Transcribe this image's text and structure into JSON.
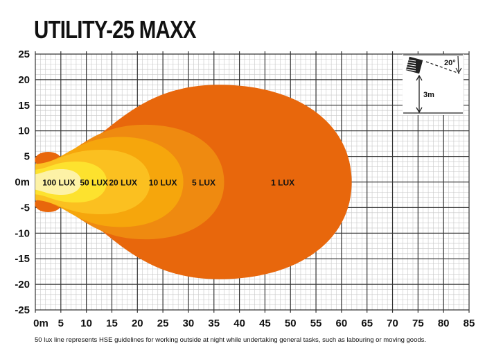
{
  "chart_data": {
    "type": "area",
    "title": "UTILITY-25 MAXX",
    "xlabel": "",
    "ylabel": "",
    "xlim": [
      0,
      85
    ],
    "ylim": [
      -25,
      25
    ],
    "grid": true,
    "x_ticks": [
      "0m",
      "5",
      "10",
      "15",
      "20",
      "25",
      "30",
      "35",
      "40",
      "45",
      "50",
      "55",
      "60",
      "65",
      "70",
      "75",
      "80",
      "85"
    ],
    "y_ticks": [
      "25",
      "20",
      "15",
      "10",
      "5",
      "0m",
      "-5",
      "-10",
      "-15",
      "-20",
      "-25"
    ],
    "series": [
      {
        "name": "1 LUX",
        "max_distance": 62,
        "max_half_width": 19,
        "label_x": 48.5,
        "color": "#e8670c"
      },
      {
        "name": "5 LUX",
        "max_distance": 37,
        "max_half_width": 11.2,
        "label_x": 33,
        "color": "#ef8a10"
      },
      {
        "name": "10 LUX",
        "max_distance": 29,
        "max_half_width": 8.8,
        "label_x": 25,
        "color": "#f6a60c"
      },
      {
        "name": "20 LUX",
        "max_distance": 22.5,
        "max_half_width": 6.3,
        "label_x": 17.2,
        "color": "#fbc020"
      },
      {
        "name": "50 LUX",
        "max_distance": 14,
        "max_half_width": 4,
        "label_x": 11.5,
        "color": "#fde22e"
      },
      {
        "name": "100 LUX",
        "max_distance": 9,
        "max_half_width": 2.5,
        "label_x": 4.6,
        "color": "#fdf2a6"
      }
    ],
    "inset": {
      "angle_label": "20°",
      "height_label": "3m"
    }
  },
  "footnote": "50 lux line represents HSE guidelines for working outside at night while undertaking general tasks, such as labouring or moving goods."
}
